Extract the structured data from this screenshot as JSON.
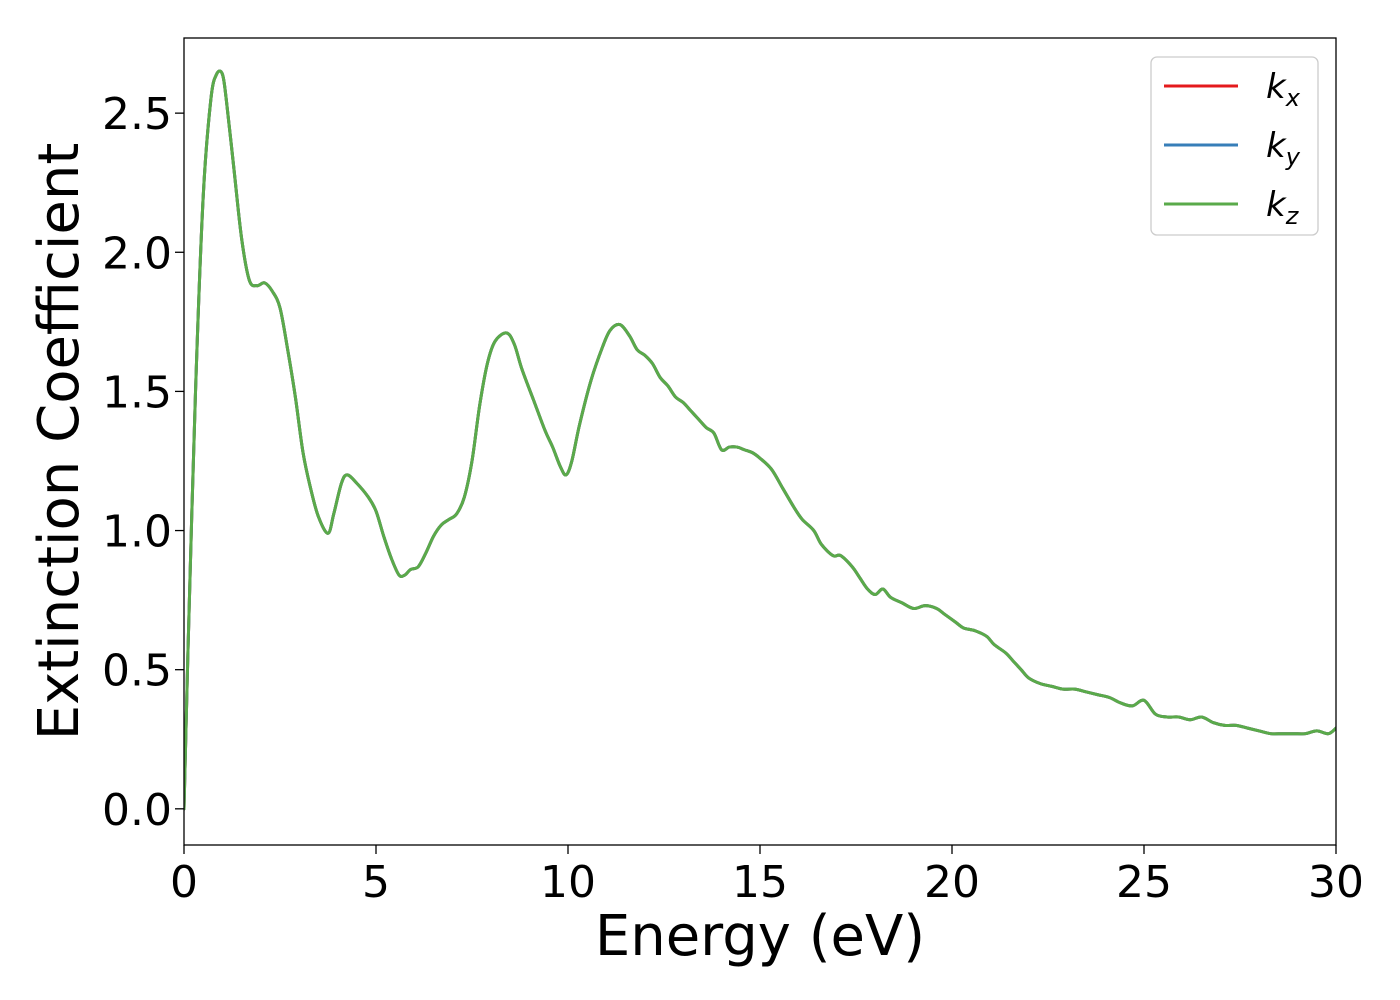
{
  "chart_data": {
    "type": "line",
    "xlabel": "Energy (eV)",
    "ylabel": "Extinction Coefficient",
    "xlim": [
      0,
      30
    ],
    "ylim": [
      -0.13,
      2.77
    ],
    "xticks": [
      0,
      5,
      10,
      15,
      20,
      25,
      30
    ],
    "xtick_labels": [
      "0",
      "5",
      "10",
      "15",
      "20",
      "25",
      "30"
    ],
    "yticks": [
      0.0,
      0.5,
      1.0,
      1.5,
      2.0,
      2.5
    ],
    "ytick_labels": [
      "0.0",
      "0.5",
      "1.0",
      "1.5",
      "2.0",
      "2.5"
    ],
    "grid": false,
    "legend_position": "top-right",
    "series": [
      {
        "name": "k",
        "subscript": "x",
        "color": "#e41a1c"
      },
      {
        "name": "k",
        "subscript": "y",
        "color": "#377eb8"
      },
      {
        "name": "k",
        "subscript": "z",
        "color": "#5aaa4a"
      }
    ],
    "x": [
      0,
      0.1,
      0.3,
      0.5,
      0.7,
      0.85,
      1.0,
      1.1,
      1.3,
      1.5,
      1.7,
      1.9,
      2.1,
      2.3,
      2.5,
      2.7,
      2.9,
      3.1,
      3.3,
      3.5,
      3.75,
      3.9,
      4.1,
      4.25,
      4.5,
      4.8,
      5.0,
      5.2,
      5.4,
      5.6,
      5.75,
      5.9,
      6.1,
      6.3,
      6.5,
      6.7,
      6.9,
      7.1,
      7.3,
      7.5,
      7.7,
      7.9,
      8.1,
      8.4,
      8.6,
      8.8,
      9.1,
      9.4,
      9.6,
      9.8,
      9.95,
      10.1,
      10.3,
      10.6,
      10.9,
      11.1,
      11.35,
      11.6,
      11.8,
      12.0,
      12.2,
      12.4,
      12.6,
      12.8,
      13.0,
      13.2,
      13.4,
      13.6,
      13.8,
      14.0,
      14.2,
      14.4,
      14.6,
      14.8,
      15.0,
      15.3,
      15.6,
      15.9,
      16.1,
      16.4,
      16.6,
      16.9,
      17.1,
      17.4,
      17.6,
      17.8,
      18.0,
      18.2,
      18.4,
      18.7,
      19.0,
      19.3,
      19.6,
      19.8,
      20.1,
      20.3,
      20.6,
      20.9,
      21.1,
      21.4,
      21.6,
      21.8,
      22.0,
      22.3,
      22.6,
      22.9,
      23.2,
      23.5,
      23.8,
      24.1,
      24.4,
      24.7,
      25.0,
      25.3,
      25.6,
      25.9,
      26.2,
      26.5,
      26.8,
      27.1,
      27.4,
      27.7,
      28.0,
      28.3,
      28.6,
      28.9,
      29.2,
      29.5,
      29.8,
      30.0
    ],
    "values": [
      0.0,
      0.55,
      1.5,
      2.2,
      2.55,
      2.64,
      2.64,
      2.55,
      2.3,
      2.05,
      1.9,
      1.88,
      1.89,
      1.86,
      1.8,
      1.65,
      1.48,
      1.28,
      1.15,
      1.05,
      0.99,
      1.06,
      1.17,
      1.2,
      1.17,
      1.12,
      1.07,
      0.98,
      0.9,
      0.84,
      0.84,
      0.86,
      0.87,
      0.92,
      0.98,
      1.02,
      1.04,
      1.06,
      1.12,
      1.25,
      1.45,
      1.6,
      1.68,
      1.71,
      1.67,
      1.58,
      1.47,
      1.36,
      1.3,
      1.23,
      1.2,
      1.25,
      1.38,
      1.54,
      1.66,
      1.72,
      1.74,
      1.7,
      1.65,
      1.63,
      1.6,
      1.55,
      1.52,
      1.48,
      1.46,
      1.43,
      1.4,
      1.37,
      1.35,
      1.29,
      1.3,
      1.3,
      1.29,
      1.28,
      1.26,
      1.22,
      1.15,
      1.08,
      1.04,
      1.0,
      0.95,
      0.91,
      0.91,
      0.87,
      0.83,
      0.79,
      0.77,
      0.79,
      0.76,
      0.74,
      0.72,
      0.73,
      0.72,
      0.7,
      0.67,
      0.65,
      0.64,
      0.62,
      0.59,
      0.56,
      0.53,
      0.5,
      0.47,
      0.45,
      0.44,
      0.43,
      0.43,
      0.42,
      0.41,
      0.4,
      0.38,
      0.37,
      0.39,
      0.34,
      0.33,
      0.33,
      0.32,
      0.33,
      0.31,
      0.3,
      0.3,
      0.29,
      0.28,
      0.27,
      0.27,
      0.27,
      0.27,
      0.28,
      0.27,
      0.29
    ]
  }
}
